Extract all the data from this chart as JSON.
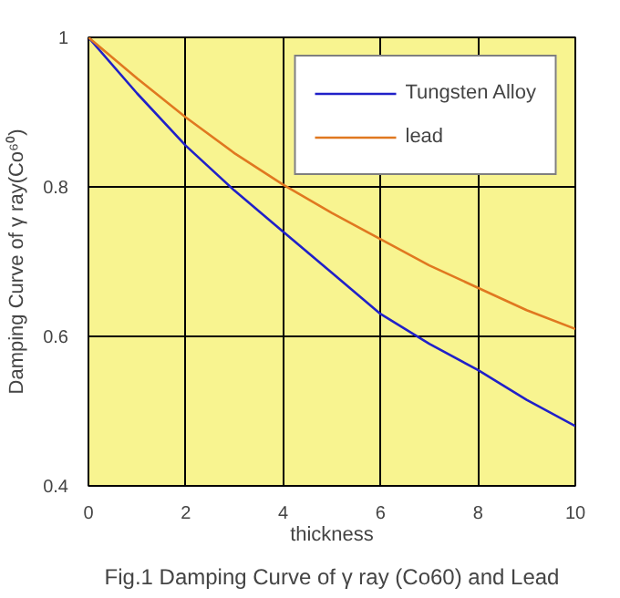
{
  "chart_data": {
    "type": "line",
    "title": "Fig.1 Damping Curve of γ ray (Co60) and Lead",
    "xlabel": "thickness",
    "ylabel": "Damping Curve of γ ray(Co⁶⁰)",
    "x": [
      0,
      1,
      2,
      3,
      4,
      5,
      6,
      7,
      8,
      9,
      10
    ],
    "series": [
      {
        "name": "Tungsten Alloy",
        "color": "#2020c8",
        "values": [
          1,
          0.925,
          0.855,
          0.795,
          0.74,
          0.685,
          0.63,
          0.59,
          0.555,
          0.515,
          0.48
        ]
      },
      {
        "name": "lead",
        "color": "#e07820",
        "values": [
          1,
          0.945,
          0.893,
          0.845,
          0.803,
          0.765,
          0.73,
          0.695,
          0.665,
          0.635,
          0.61
        ]
      }
    ],
    "xlim": [
      0,
      10
    ],
    "ylim": [
      0.4,
      1
    ],
    "xticks": [
      0,
      2,
      4,
      6,
      8,
      10
    ],
    "yticks": [
      0.4,
      0.6,
      0.8,
      1
    ],
    "grid": true,
    "legend": "top right",
    "marker": "none",
    "line_style": "solid"
  }
}
